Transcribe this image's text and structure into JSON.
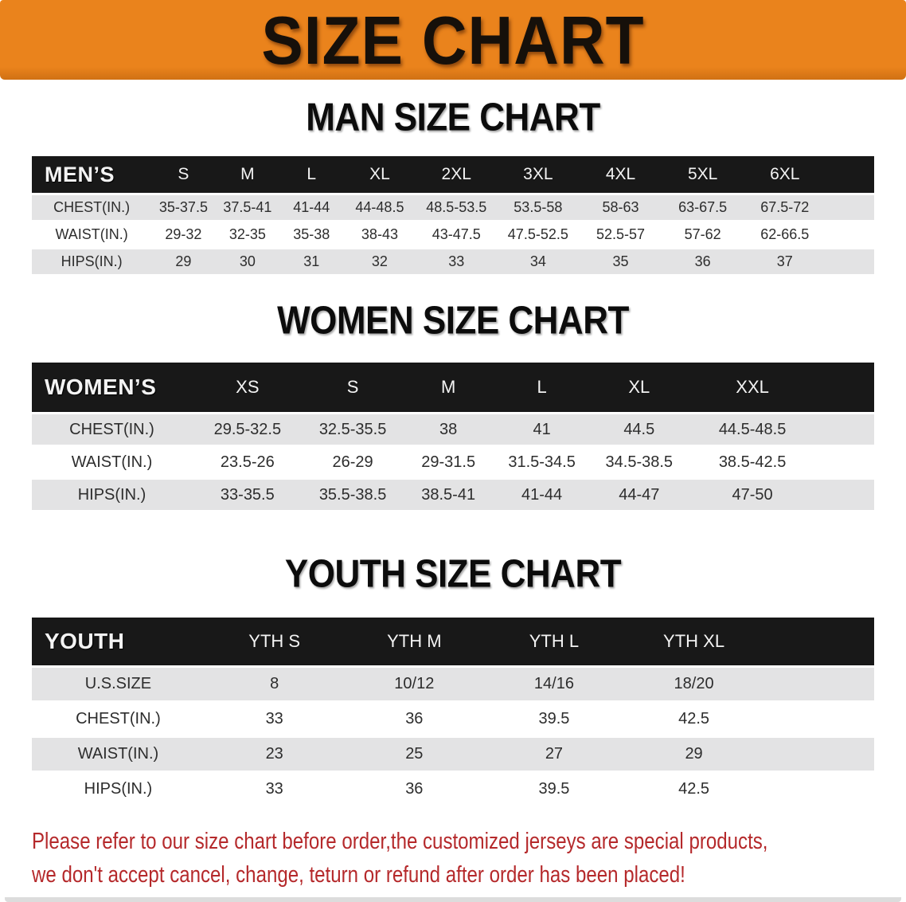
{
  "banner": {
    "title": "SIZE CHART"
  },
  "sections": {
    "men": {
      "title": "MAN SIZE CHART",
      "header": [
        "MEN’S",
        "S",
        "M",
        "L",
        "XL",
        "2XL",
        "3XL",
        "4XL",
        "5XL",
        "6XL"
      ],
      "rows": [
        [
          "CHEST(IN.)",
          "35-37.5",
          "37.5-41",
          "41-44",
          "44-48.5",
          "48.5-53.5",
          "53.5-58",
          "58-63",
          "63-67.5",
          "67.5-72"
        ],
        [
          "WAIST(IN.)",
          "29-32",
          "32-35",
          "35-38",
          "38-43",
          "43-47.5",
          "47.5-52.5",
          "52.5-57",
          "57-62",
          "62-66.5"
        ],
        [
          "HIPS(IN.)",
          "29",
          "30",
          "31",
          "32",
          "33",
          "34",
          "35",
          "36",
          "37"
        ]
      ]
    },
    "women": {
      "title": "WOMEN SIZE CHART",
      "header": [
        "WOMEN’S",
        "XS",
        "S",
        "M",
        "L",
        "XL",
        "XXL"
      ],
      "rows": [
        [
          "CHEST(IN.)",
          "29.5-32.5",
          "32.5-35.5",
          "38",
          "41",
          "44.5",
          "44.5-48.5"
        ],
        [
          "WAIST(IN.)",
          "23.5-26",
          "26-29",
          "29-31.5",
          "31.5-34.5",
          "34.5-38.5",
          "38.5-42.5"
        ],
        [
          "HIPS(IN.)",
          "33-35.5",
          "35.5-38.5",
          "38.5-41",
          "41-44",
          "44-47",
          "47-50"
        ]
      ]
    },
    "youth": {
      "title": "YOUTH SIZE CHART",
      "header": [
        "YOUTH",
        "YTH S",
        "YTH M",
        "YTH L",
        "YTH XL"
      ],
      "rows": [
        [
          "U.S.SIZE",
          "8",
          "10/12",
          "14/16",
          "18/20"
        ],
        [
          "CHEST(IN.)",
          "33",
          "36",
          "39.5",
          "42.5"
        ],
        [
          "WAIST(IN.)",
          "23",
          "25",
          "27",
          "29"
        ],
        [
          "HIPS(IN.)",
          "33",
          "36",
          "39.5",
          "42.5"
        ]
      ]
    }
  },
  "disclaimer": {
    "line1": "Please refer to our size chart before order,the customized jerseys are special products,",
    "line2": "we don't accept cancel, change, teturn or refund after order has been placed!"
  },
  "colors": {
    "banner_orange": "#EA831C",
    "banner_orange_dark": "#D07114",
    "header_black": "#181818",
    "row_gray": "#E3E3E4",
    "disclaimer_red": "#B5292B",
    "title_black": "#0C0C0C"
  }
}
